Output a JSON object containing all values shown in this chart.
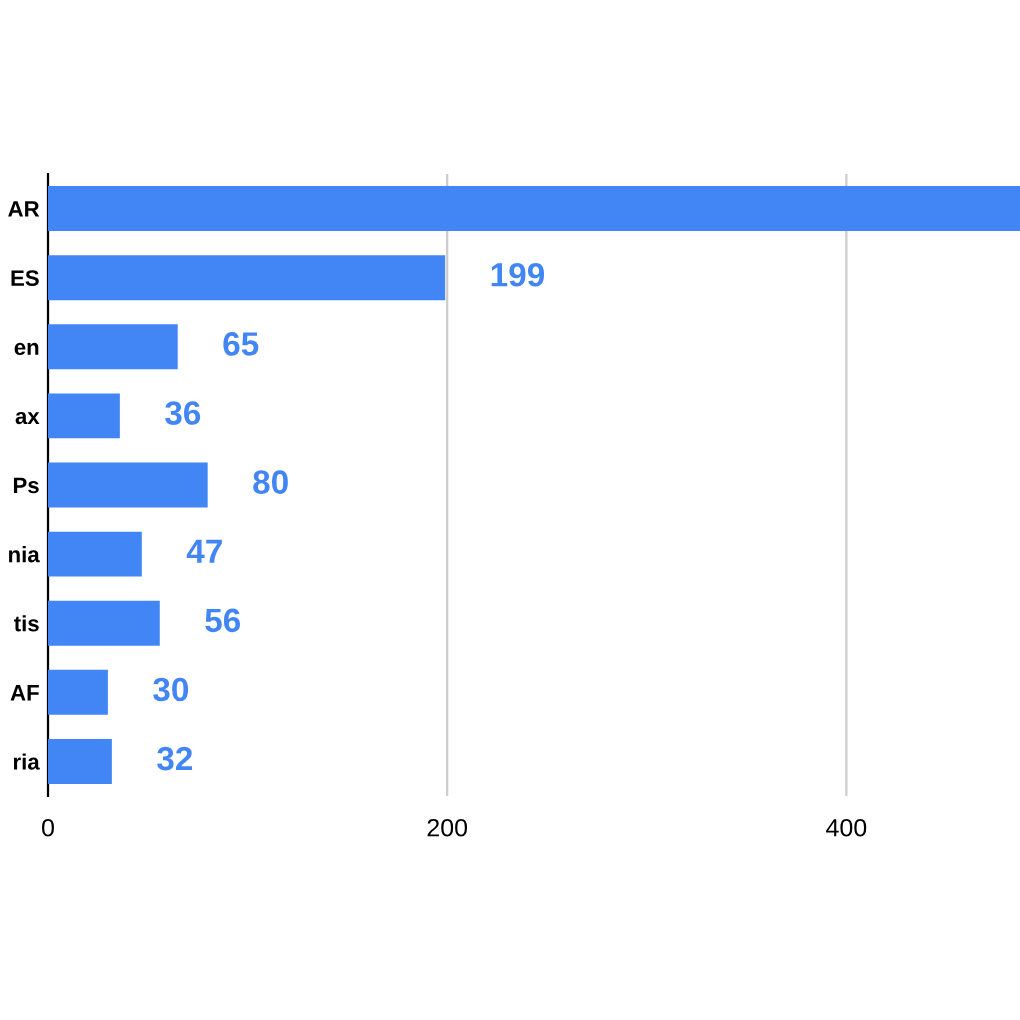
{
  "chart_data": {
    "type": "bar",
    "orientation": "horizontal",
    "categories": [
      "AR",
      "ES",
      "en",
      "ax",
      "Ps",
      "nia",
      "tis",
      "AF",
      "ria"
    ],
    "values": [
      487,
      199,
      65,
      36,
      80,
      47,
      56,
      30,
      32
    ],
    "value_labels": [
      null,
      "199",
      "65",
      "36",
      "80",
      "47",
      "56",
      "30",
      "32"
    ],
    "color": "#4285f4",
    "xlim": [
      0,
      487
    ],
    "xticks": [
      0,
      200,
      400
    ],
    "grid": "x"
  }
}
